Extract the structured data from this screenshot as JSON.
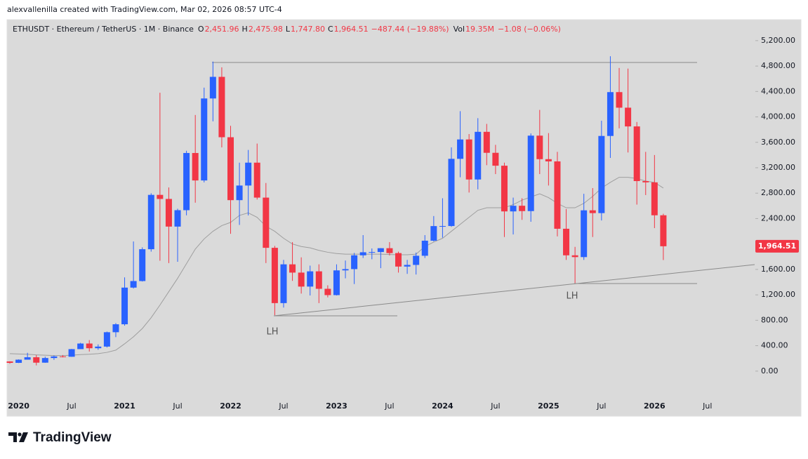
{
  "header": "alexvallenilla created with TradingView.com, Mar 02, 2026 08:57 UTC-4",
  "footer": "TradingView",
  "chart_data": {
    "type": "candlestick",
    "symbol": "ETHUSDT · Ethereum / TetherUS · 1M · Binance",
    "legend": [
      {
        "key": "O",
        "value": "2,451.96"
      },
      {
        "key": "H",
        "value": "2,475.98"
      },
      {
        "key": "L",
        "value": "1,747.80"
      },
      {
        "key": "C",
        "value": "1,964.51"
      }
    ],
    "change": "−487.44 (−19.88%)",
    "volume": {
      "key": "Vol",
      "value": "19.35M",
      "change": "−1.08 (−0.06%)"
    },
    "categories": [
      null,
      "2020",
      null,
      null,
      null,
      null,
      null,
      "Jul",
      null,
      null,
      null,
      null,
      null,
      "2021",
      null,
      null,
      null,
      null,
      null,
      "Jul",
      null,
      null,
      null,
      null,
      null,
      "2022",
      null,
      null,
      null,
      null,
      null,
      "Jul",
      null,
      null,
      null,
      null,
      null,
      "2023",
      null,
      null,
      null,
      null,
      null,
      "Jul",
      null,
      null,
      null,
      null,
      null,
      "2024",
      null,
      null,
      null,
      null,
      null,
      "Jul",
      null,
      null,
      null,
      null,
      null,
      "2025",
      null,
      null,
      null,
      null,
      null,
      "Jul",
      null,
      null,
      null,
      null,
      null,
      "2026",
      null,
      null,
      null,
      null,
      null,
      "Jul"
    ],
    "candles": {
      "up_color": "#2962ff",
      "down_color": "#f23645",
      "open": [
        152,
        130,
        180,
        218,
        133,
        206,
        231,
        226,
        346,
        434,
        360,
        386,
        612,
        737,
        1314,
        1417,
        1918,
        2773,
        2709,
        2274,
        2532,
        3432,
        3000,
        4290,
        4630,
        3680,
        2690,
        2920,
        3280,
        2730,
        1940,
        1070,
        1680,
        1550,
        1330,
        1570,
        1295,
        1196,
        1585,
        1605,
        1822,
        1870,
        1874,
        1934,
        1857,
        1645,
        1671,
        1815,
        2052,
        2282,
        2283,
        3340,
        3645,
        3015,
        3765,
        3435,
        3232,
        2513,
        2602,
        2518,
        3705,
        3335,
        3300,
        2240,
        1822,
        1794,
        2530,
        2486,
        3700,
        4390,
        4145,
        3850,
        2990,
        2970,
        2451.96,
        null,
        null,
        null,
        null,
        null
      ],
      "high": [
        155,
        185,
        288,
        253,
        227,
        247,
        253,
        349,
        445,
        488,
        420,
        622,
        755,
        1475,
        2040,
        1947,
        2798,
        4380,
        2890,
        2555,
        3467,
        4030,
        4460,
        4870,
        4780,
        3860,
        3280,
        3480,
        3580,
        2960,
        1970,
        1750,
        2030,
        1790,
        1660,
        1680,
        1350,
        1680,
        1740,
        1860,
        2140,
        1930,
        1935,
        2030,
        1880,
        1750,
        1865,
        2140,
        2440,
        2720,
        3520,
        4090,
        3730,
        3980,
        3890,
        3560,
        3280,
        2730,
        2720,
        3740,
        4110,
        3745,
        3450,
        2550,
        1955,
        2790,
        2880,
        3940,
        4955,
        4770,
        4760,
        3920,
        3450,
        3400,
        2475.98,
        null,
        null,
        null,
        null,
        null
      ],
      "low": [
        116,
        127,
        180,
        90,
        131,
        177,
        216,
        225,
        346,
        308,
        335,
        372,
        535,
        715,
        1300,
        1410,
        1880,
        1737,
        1700,
        1720,
        2451,
        2650,
        2970,
        3930,
        3520,
        2160,
        2300,
        2450,
        2700,
        1700,
        880,
        1000,
        1420,
        1220,
        1190,
        1070,
        1160,
        1190,
        1460,
        1370,
        1780,
        1760,
        1620,
        1820,
        1550,
        1530,
        1520,
        1780,
        2040,
        2100,
        2270,
        3050,
        2810,
        2860,
        3240,
        3100,
        2110,
        2150,
        2380,
        2350,
        3100,
        2920,
        2120,
        1750,
        1385,
        1750,
        2110,
        2370,
        3355,
        3820,
        3440,
        2620,
        2770,
        2250,
        1747.8,
        null,
        null,
        null,
        null,
        null
      ],
      "close": [
        130,
        180,
        218,
        133,
        206,
        231,
        226,
        346,
        434,
        360,
        386,
        612,
        737,
        1314,
        1417,
        1918,
        2773,
        2709,
        2274,
        2532,
        3432,
        3000,
        4290,
        4630,
        3680,
        2690,
        2920,
        3280,
        2730,
        1940,
        1070,
        1680,
        1550,
        1330,
        1570,
        1295,
        1196,
        1585,
        1605,
        1822,
        1870,
        1874,
        1934,
        1857,
        1645,
        1671,
        1815,
        2052,
        2282,
        2283,
        3340,
        3645,
        3015,
        3765,
        3435,
        3232,
        2513,
        2602,
        2518,
        3705,
        3335,
        3300,
        2240,
        1822,
        1794,
        2530,
        2486,
        3700,
        4390,
        4145,
        3850,
        2990,
        2970,
        2451.96,
        1964.51,
        null,
        null,
        null,
        null,
        null
      ]
    },
    "moving_average": {
      "color": "#9e9e9e",
      "values": [
        275,
        270,
        265,
        255,
        250,
        245,
        245,
        250,
        260,
        265,
        275,
        295,
        330,
        430,
        540,
        670,
        840,
        1040,
        1250,
        1460,
        1690,
        1920,
        2080,
        2200,
        2290,
        2340,
        2450,
        2490,
        2420,
        2280,
        2200,
        2090,
        2000,
        1960,
        1940,
        1900,
        1870,
        1850,
        1840,
        1840,
        1840,
        1840,
        1840,
        1835,
        1830,
        1830,
        1840,
        1960,
        2030,
        2090,
        2200,
        2310,
        2420,
        2530,
        2570,
        2570,
        2570,
        2620,
        2690,
        2740,
        2790,
        2730,
        2640,
        2570,
        2570,
        2640,
        2750,
        2880,
        2970,
        3050,
        3050,
        3030,
        2990,
        2970,
        2880,
        null,
        null,
        null,
        null,
        null
      ]
    },
    "price_label": {
      "value": 1964.51,
      "label": "1,964.51",
      "color": "#f23645"
    },
    "annotations": [
      "LH",
      "LH"
    ],
    "ylim": [
      -400,
      5530
    ],
    "yticks": [
      {
        "value": 0,
        "label": "0.00"
      },
      {
        "value": 400,
        "label": "400.00"
      },
      {
        "value": 800,
        "label": "800.00"
      },
      {
        "value": 1200,
        "label": "1,200.00"
      },
      {
        "value": 1600,
        "label": "1,600.00"
      },
      {
        "value": 2000,
        "label": "2,000.00"
      },
      {
        "value": 2400,
        "label": "2,400.00"
      },
      {
        "value": 2800,
        "label": "2,800.00"
      },
      {
        "value": 3200,
        "label": "3,200.00"
      },
      {
        "value": 3600,
        "label": "3,600.00"
      },
      {
        "value": 4000,
        "label": "4,000.00"
      },
      {
        "value": 4400,
        "label": "4,400.00"
      },
      {
        "value": 4800,
        "label": "4,800.00"
      },
      {
        "value": 5200,
        "label": "5,200.00"
      }
    ],
    "grid": false
  }
}
